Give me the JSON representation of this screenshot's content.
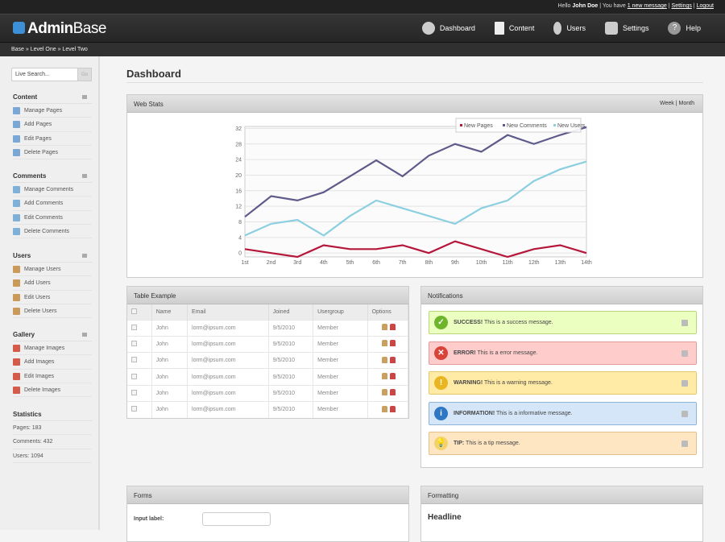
{
  "topbar": {
    "hello": "Hello",
    "user": "John Doe",
    "you_have": "| You have",
    "messages_link": "1 new message",
    "settings_link": "Settings",
    "logout_link": "Logout",
    "sep": "|"
  },
  "header": {
    "logo_bold": "Admin",
    "logo_light": "Base",
    "nav": [
      {
        "label": "Dashboard",
        "icon": "gear-icon"
      },
      {
        "label": "Content",
        "icon": "document-icon"
      },
      {
        "label": "Users",
        "icon": "user-icon"
      },
      {
        "label": "Settings",
        "icon": "settings-icon"
      },
      {
        "label": "Help",
        "icon": "help-icon"
      }
    ]
  },
  "breadcrumb": "Base » Level One » Level Two",
  "sidebar": {
    "search_placeholder": "Live Search...",
    "go": "Go",
    "sections": [
      {
        "title": "Content",
        "items": [
          "Manage Pages",
          "Add Pages",
          "Edit Pages",
          "Delete Pages"
        ]
      },
      {
        "title": "Comments",
        "items": [
          "Manage Comments",
          "Add Comments",
          "Edit Comments",
          "Delete Comments"
        ]
      },
      {
        "title": "Users",
        "items": [
          "Manage Users",
          "Add Users",
          "Edit Users",
          "Delete Users"
        ]
      },
      {
        "title": "Gallery",
        "items": [
          "Manage Images",
          "Add Images",
          "Edit Images",
          "Delete Images"
        ]
      }
    ],
    "statistics": {
      "title": "Statistics",
      "items": [
        "Pages: 183",
        "Comments: 432",
        "Users: 1094"
      ]
    }
  },
  "main": {
    "title": "Dashboard"
  },
  "webstats": {
    "title": "Web Stats",
    "tab_week": "Week",
    "tab_sep": "|",
    "tab_month": "Month"
  },
  "chart_data": {
    "type": "line",
    "categories": [
      "1st",
      "2nd",
      "3rd",
      "4th",
      "5th",
      "6th",
      "7th",
      "8th",
      "9th",
      "10th",
      "11th",
      "12th",
      "13th",
      "14th"
    ],
    "yticks": [
      "0",
      "4",
      "8",
      "12",
      "16",
      "20",
      "24",
      "28",
      "32"
    ],
    "ylim": [
      -1,
      32.5
    ],
    "grid": true,
    "legend": "top-right",
    "series": [
      {
        "name": "New Pages",
        "color": "#b5163a",
        "values": [
          1,
          0,
          -1,
          2,
          1,
          1,
          2,
          0,
          3,
          1,
          -1,
          1,
          2,
          0
        ]
      },
      {
        "name": "New Comments",
        "color": "#5e5a8a",
        "values": [
          9.3,
          14.6,
          13.5,
          15.6,
          19.7,
          23.8,
          19.7,
          25,
          28,
          26,
          30.3,
          28,
          30.3,
          32.3
        ]
      },
      {
        "name": "New Users",
        "color": "#8ccfe0",
        "values": [
          4.5,
          7.5,
          8.5,
          4.5,
          9.5,
          13.5,
          11.5,
          9.5,
          7.5,
          11.5,
          13.5,
          18.5,
          21.5,
          23.5
        ]
      }
    ]
  },
  "table": {
    "title": "Table Example",
    "columns": [
      "Name",
      "Email",
      "Joined",
      "Usergroup",
      "Options"
    ],
    "rows": [
      [
        "John",
        "lorm@ipsum.com",
        "9/5/2010",
        "Member"
      ],
      [
        "John",
        "lorm@ipsum.com",
        "9/5/2010",
        "Member"
      ],
      [
        "John",
        "lorm@ipsum.com",
        "9/5/2010",
        "Member"
      ],
      [
        "John",
        "lorm@ipsum.com",
        "9/5/2010",
        "Member"
      ],
      [
        "John",
        "lorm@ipsum.com",
        "9/5/2010",
        "Member"
      ],
      [
        "John",
        "lorm@ipsum.com",
        "9/5/2010",
        "Member"
      ]
    ]
  },
  "notifications": {
    "title": "Notifications",
    "items": [
      {
        "type": "success",
        "strong": "SUCCESS!",
        "text": " This is a success message.",
        "bg": "#eaffc0",
        "border": "#b7d77a",
        "icon_color": "#6fb52c",
        "glyph": "✓"
      },
      {
        "type": "error",
        "strong": "ERROR!",
        "text": " This is a error message.",
        "bg": "#ffcccc",
        "border": "#e39a9a",
        "icon_color": "#d9443a",
        "glyph": "✕"
      },
      {
        "type": "warning",
        "strong": "WARNING!",
        "text": " This is a warning message.",
        "bg": "#ffeaa6",
        "border": "#e6c66e",
        "icon_color": "#e9b520",
        "glyph": "!"
      },
      {
        "type": "information",
        "strong": "INFORMATION!",
        "text": " This is a informative message.",
        "bg": "#d4e6f8",
        "border": "#8db3d9",
        "icon_color": "#2f77c3",
        "glyph": "i"
      },
      {
        "type": "tip",
        "strong": "TIP:",
        "text": " This is a tip message.",
        "bg": "#ffe6c3",
        "border": "#e3c08a",
        "icon_color": "#f2d36a",
        "glyph": "💡"
      }
    ]
  },
  "forms": {
    "title": "Forms",
    "input_label": "Input label:"
  },
  "formatting": {
    "title": "Formatting",
    "headline": "Headline"
  }
}
